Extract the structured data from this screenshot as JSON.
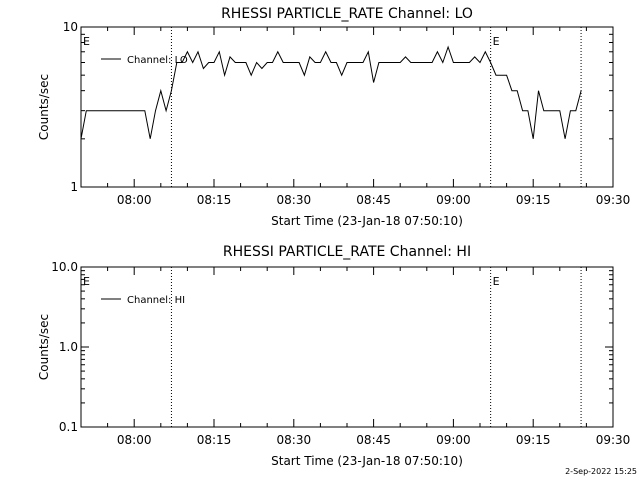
{
  "chart_data": [
    {
      "type": "line",
      "title": "RHESSI PARTICLE_RATE Channel: LO",
      "xlabel": "Start Time (23-Jan-18 07:50:10)",
      "ylabel": "Counts/sec",
      "yscale": "log",
      "ylim": [
        1,
        10
      ],
      "y_ticks": [
        {
          "value": 1,
          "label": "1"
        },
        {
          "value": 10,
          "label": "10"
        }
      ],
      "xlim": [
        "07:50",
        "09:30"
      ],
      "x_ticks": [
        "08:00",
        "08:15",
        "08:30",
        "08:45",
        "09:00",
        "09:15",
        "09:30"
      ],
      "grid": false,
      "legend": {
        "position": "top-left",
        "entries": [
          "Channel: LO"
        ]
      },
      "event_markers": [
        {
          "time": "07:50",
          "label": "E",
          "line": false
        },
        {
          "time": "08:07",
          "label": "",
          "line": true
        },
        {
          "time": "09:07",
          "label": "E",
          "line": true
        },
        {
          "time": "09:24",
          "label": "",
          "line": true
        }
      ],
      "series": [
        {
          "name": "Channel: LO",
          "x": [
            "07:50",
            "07:51",
            "07:52",
            "07:53",
            "07:54",
            "07:55",
            "07:56",
            "07:57",
            "07:58",
            "07:59",
            "08:00",
            "08:01",
            "08:02",
            "08:03",
            "08:04",
            "08:05",
            "08:06",
            "08:07",
            "08:08",
            "08:09",
            "08:10",
            "08:11",
            "08:12",
            "08:13",
            "08:14",
            "08:15",
            "08:16",
            "08:17",
            "08:18",
            "08:19",
            "08:20",
            "08:21",
            "08:22",
            "08:23",
            "08:24",
            "08:25",
            "08:26",
            "08:27",
            "08:28",
            "08:29",
            "08:30",
            "08:31",
            "08:32",
            "08:33",
            "08:34",
            "08:35",
            "08:36",
            "08:37",
            "08:38",
            "08:39",
            "08:40",
            "08:41",
            "08:42",
            "08:43",
            "08:44",
            "08:45",
            "08:46",
            "08:47",
            "08:48",
            "08:49",
            "08:50",
            "08:51",
            "08:52",
            "08:53",
            "08:54",
            "08:55",
            "08:56",
            "08:57",
            "08:58",
            "08:59",
            "09:00",
            "09:01",
            "09:02",
            "09:03",
            "09:04",
            "09:05",
            "09:06",
            "09:07",
            "09:08",
            "09:09",
            "09:10",
            "09:11",
            "09:12",
            "09:13",
            "09:14",
            "09:15",
            "09:16",
            "09:17",
            "09:18",
            "09:19",
            "09:20",
            "09:21",
            "09:22",
            "09:23",
            "09:24"
          ],
          "values": [
            2.0,
            3.0,
            3.0,
            3.0,
            3.0,
            3.0,
            3.0,
            3.0,
            3.0,
            3.0,
            3.0,
            3.0,
            3.0,
            2.0,
            3.0,
            4.0,
            3.0,
            4.0,
            6.0,
            6.0,
            7.0,
            6.0,
            7.0,
            5.5,
            6.0,
            6.0,
            7.0,
            5.0,
            6.5,
            6.0,
            6.0,
            6.0,
            5.0,
            6.0,
            5.5,
            6.0,
            6.0,
            7.0,
            6.0,
            6.0,
            6.0,
            6.0,
            5.0,
            6.5,
            6.0,
            6.0,
            7.0,
            6.0,
            6.0,
            5.0,
            6.0,
            6.0,
            6.0,
            6.0,
            7.0,
            4.5,
            6.0,
            6.0,
            6.0,
            6.0,
            6.0,
            6.5,
            6.0,
            6.0,
            6.0,
            6.0,
            6.0,
            7.0,
            6.0,
            7.5,
            6.0,
            6.0,
            6.0,
            6.0,
            6.5,
            6.0,
            7.0,
            6.0,
            5.0,
            5.0,
            5.0,
            4.0,
            4.0,
            3.0,
            3.0,
            2.0,
            4.0,
            3.0,
            3.0,
            3.0,
            3.0,
            2.0,
            3.0,
            3.0,
            4.0
          ]
        }
      ]
    },
    {
      "type": "line",
      "title": "RHESSI PARTICLE_RATE Channel: HI",
      "xlabel": "Start Time (23-Jan-18 07:50:10)",
      "ylabel": "Counts/sec",
      "yscale": "log",
      "ylim": [
        0.1,
        10
      ],
      "y_ticks": [
        {
          "value": 0.1,
          "label": "0.1"
        },
        {
          "value": 1,
          "label": "1.0"
        },
        {
          "value": 10,
          "label": "10.0"
        }
      ],
      "xlim": [
        "07:50",
        "09:30"
      ],
      "x_ticks": [
        "08:00",
        "08:15",
        "08:30",
        "08:45",
        "09:00",
        "09:15",
        "09:30"
      ],
      "grid": false,
      "legend": {
        "position": "top-left",
        "entries": [
          "Channel: HI"
        ]
      },
      "event_markers": [
        {
          "time": "07:50",
          "label": "E",
          "line": false
        },
        {
          "time": "08:07",
          "label": "",
          "line": true
        },
        {
          "time": "09:07",
          "label": "E",
          "line": true
        },
        {
          "time": "09:24",
          "label": "",
          "line": true
        }
      ],
      "series": [
        {
          "name": "Channel: HI",
          "x": [],
          "values": []
        }
      ]
    }
  ],
  "timestamp": "2-Sep-2022 15:25"
}
